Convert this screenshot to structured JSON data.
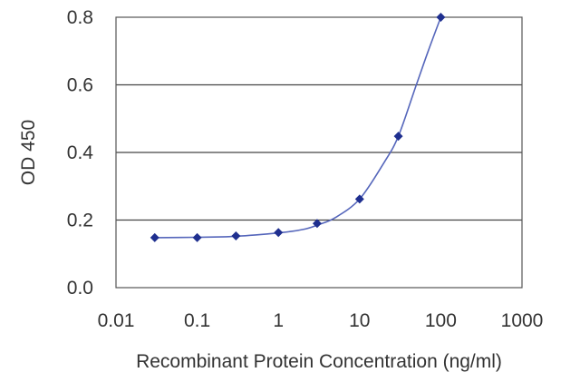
{
  "chart_data": {
    "type": "scatter",
    "title": "",
    "xlabel": "Recombinant Protein Concentration (ng/ml)",
    "ylabel": "OD 450",
    "x_scale": "log",
    "xlim": [
      0.01,
      1000
    ],
    "ylim": [
      0,
      0.8
    ],
    "x_ticks": [
      "0.01",
      "0.1",
      "1",
      "10",
      "100",
      "1000"
    ],
    "y_ticks": [
      "0.0",
      "0.2",
      "0.4",
      "0.6",
      "0.8"
    ],
    "grid": "horizontal",
    "legend": "none",
    "points": [
      {
        "x": 0.03,
        "y": 0.148
      },
      {
        "x": 0.1,
        "y": 0.148
      },
      {
        "x": 0.3,
        "y": 0.153
      },
      {
        "x": 1,
        "y": 0.163
      },
      {
        "x": 3,
        "y": 0.19
      },
      {
        "x": 10,
        "y": 0.262
      },
      {
        "x": 30,
        "y": 0.448
      },
      {
        "x": 100,
        "y": 0.8
      }
    ],
    "fit_curve": [
      {
        "x": 0.03,
        "y": 0.148
      },
      {
        "x": 0.1,
        "y": 0.149
      },
      {
        "x": 0.3,
        "y": 0.152
      },
      {
        "x": 1,
        "y": 0.162
      },
      {
        "x": 2,
        "y": 0.172
      },
      {
        "x": 3,
        "y": 0.185
      },
      {
        "x": 5,
        "y": 0.207
      },
      {
        "x": 10,
        "y": 0.262
      },
      {
        "x": 20,
        "y": 0.37
      },
      {
        "x": 30,
        "y": 0.448
      },
      {
        "x": 50,
        "y": 0.6
      },
      {
        "x": 70,
        "y": 0.7
      },
      {
        "x": 100,
        "y": 0.8
      }
    ],
    "colors": {
      "series": "#1f2f8f",
      "line": "#5566bb",
      "grid": "#444444",
      "frame": "#555555",
      "text": "#333333"
    }
  }
}
